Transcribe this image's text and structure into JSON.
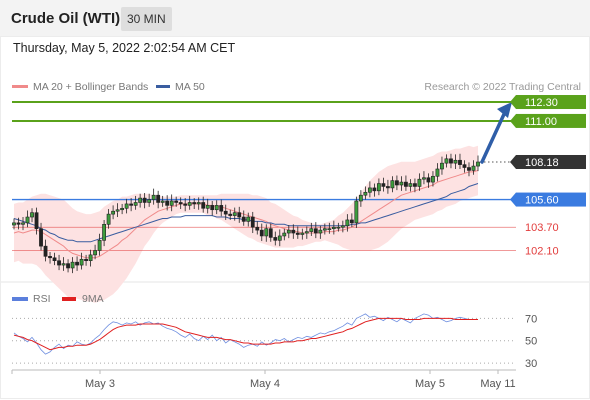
{
  "header": {
    "title": "Crude Oil (WTI)",
    "timeframe": "30 MIN",
    "datetime": "Thursday, May 5, 2022 2:02:54 AM CET"
  },
  "legend": {
    "ma20": "MA 20 + Bollinger Bands",
    "ma50": "MA 50",
    "credit": "Research © 2022 Trading Central",
    "rsi": "RSI",
    "ma9": "9MA"
  },
  "colors": {
    "ma20": "#f08a8a",
    "ma50": "#3a5da0",
    "target": "#5aa21b",
    "pivot": "#3a7be0",
    "support": "#e23c3c",
    "current": "#333333",
    "band": "#fde2e2",
    "arrow": "#2f5ea8"
  },
  "chart_data": [
    {
      "type": "candlestick",
      "x_ticks": [
        "May 3",
        "May 4",
        "May 5",
        "May 11"
      ],
      "ylim": [
        99.8,
        113.4
      ],
      "levels": [
        {
          "value": 112.3,
          "label": "112.30",
          "kind": "target"
        },
        {
          "value": 111.0,
          "label": "111.00",
          "kind": "target"
        },
        {
          "value": 108.18,
          "label": "108.18",
          "kind": "current"
        },
        {
          "value": 105.6,
          "label": "105.60",
          "kind": "pivot"
        },
        {
          "value": 103.7,
          "label": "103.70",
          "kind": "support"
        },
        {
          "value": 102.1,
          "label": "102.10",
          "kind": "support"
        }
      ],
      "closes": [
        104.0,
        103.9,
        104.0,
        104.4,
        104.7,
        103.6,
        102.4,
        101.7,
        101.6,
        101.4,
        101.1,
        101.2,
        100.9,
        101.3,
        101.1,
        101.5,
        101.4,
        101.8,
        102.1,
        102.8,
        103.9,
        104.6,
        104.8,
        104.9,
        105.0,
        105.3,
        105.2,
        105.4,
        105.7,
        105.4,
        105.6,
        105.9,
        105.4,
        105.5,
        105.2,
        105.5,
        105.4,
        105.3,
        105.2,
        105.4,
        105.3,
        105.4,
        105.0,
        105.2,
        104.9,
        105.2,
        104.8,
        104.6,
        104.5,
        104.7,
        104.4,
        104.1,
        104.4,
        103.7,
        103.5,
        103.1,
        103.6,
        103.0,
        102.8,
        103.1,
        103.3,
        103.5,
        103.3,
        103.2,
        103.3,
        103.4,
        103.6,
        103.3,
        103.5,
        103.6,
        103.6,
        103.7,
        103.7,
        103.8,
        104.2,
        104.0,
        105.5,
        105.9,
        106.1,
        106.4,
        106.2,
        106.7,
        106.5,
        106.4,
        106.9,
        106.6,
        106.8,
        106.5,
        106.7,
        106.5,
        107.0,
        107.1,
        106.8,
        107.2,
        107.7,
        108.1,
        108.4,
        108.1,
        108.3,
        108.0,
        107.8,
        107.6,
        107.9,
        108.18
      ],
      "ma20": [
        103.3,
        103.4,
        103.3,
        103.4,
        103.5,
        103.5,
        103.4,
        103.2,
        103.0,
        102.8,
        102.6,
        102.4,
        102.1,
        101.9,
        101.8,
        101.7,
        101.6,
        101.6,
        101.6,
        101.7,
        101.9,
        102.1,
        102.3,
        102.5,
        102.8,
        103.0,
        103.3,
        103.6,
        103.9,
        104.2,
        104.4,
        104.6,
        104.8,
        104.9,
        105.0,
        105.1,
        105.2,
        105.3,
        105.3,
        105.3,
        105.3,
        105.3,
        105.3,
        105.2,
        105.2,
        105.1,
        105.1,
        105.0,
        104.9,
        104.8,
        104.7,
        104.6,
        104.5,
        104.4,
        104.3,
        104.2,
        104.1,
        103.9,
        103.8,
        103.7,
        103.6,
        103.5,
        103.4,
        103.4,
        103.3,
        103.3,
        103.3,
        103.3,
        103.3,
        103.4,
        103.4,
        103.4,
        103.5,
        103.5,
        103.6,
        103.7,
        103.9,
        104.1,
        104.3,
        104.5,
        104.7,
        104.9,
        105.1,
        105.3,
        105.5,
        105.7,
        105.9,
        106.0,
        106.1,
        106.2,
        106.3,
        106.4,
        106.5,
        106.6,
        106.8,
        106.9,
        107.0,
        107.1,
        107.2,
        107.3,
        107.4,
        107.5,
        107.5,
        107.6
      ],
      "ma50": [
        104.3,
        104.2,
        104.1,
        104.0,
        103.9,
        103.8,
        103.6,
        103.5,
        103.3,
        103.2,
        103.0,
        102.9,
        102.8,
        102.8,
        102.7,
        102.7,
        102.7,
        102.7,
        102.8,
        102.9,
        103.0,
        103.1,
        103.2,
        103.3,
        103.4,
        103.5,
        103.6,
        103.7,
        103.8,
        103.9,
        104.0,
        104.1,
        104.2,
        104.3,
        104.3,
        104.4,
        104.4,
        104.4,
        104.5,
        104.5,
        104.5,
        104.5,
        104.5,
        104.5,
        104.5,
        104.4,
        104.4,
        104.4,
        104.3,
        104.3,
        104.3,
        104.2,
        104.2,
        104.1,
        104.1,
        104.1,
        104.0,
        104.0,
        103.9,
        103.9,
        103.9,
        103.8,
        103.8,
        103.8,
        103.8,
        103.8,
        103.8,
        103.8,
        103.8,
        103.8,
        103.8,
        103.8,
        103.8,
        103.8,
        103.8,
        103.9,
        103.9,
        104.0,
        104.0,
        104.1,
        104.2,
        104.3,
        104.4,
        104.5,
        104.6,
        104.7,
        104.8,
        104.9,
        105.0,
        105.1,
        105.2,
        105.3,
        105.4,
        105.5,
        105.6,
        105.7,
        105.8,
        106.0,
        106.1,
        106.2,
        106.3,
        106.5,
        106.6,
        106.7
      ],
      "band_width": [
        2.0,
        2.0,
        2.1,
        2.2,
        2.3,
        2.4,
        2.6,
        2.8,
        2.9,
        3.0,
        3.1,
        3.2,
        3.2,
        3.1,
        3.0,
        3.0,
        3.0,
        3.0,
        3.1,
        3.1,
        3.2,
        3.2,
        3.2,
        3.1,
        3.0,
        2.8,
        2.6,
        2.4,
        2.1,
        1.8,
        1.6,
        1.3,
        1.1,
        0.9,
        0.8,
        0.7,
        0.6,
        0.6,
        0.6,
        0.6,
        0.6,
        0.6,
        0.6,
        0.7,
        0.7,
        0.8,
        0.9,
        1.0,
        1.1,
        1.2,
        1.3,
        1.4,
        1.5,
        1.5,
        1.6,
        1.6,
        1.6,
        1.5,
        1.5,
        1.4,
        1.3,
        1.2,
        1.1,
        1.0,
        0.9,
        0.8,
        0.7,
        0.6,
        0.6,
        0.6,
        0.7,
        0.8,
        1.0,
        1.2,
        1.4,
        1.6,
        1.8,
        2.0,
        2.2,
        2.4,
        2.5,
        2.6,
        2.6,
        2.6,
        2.5,
        2.4,
        2.3,
        2.2,
        2.1,
        2.0,
        2.0,
        2.0,
        2.0,
        2.0,
        2.0,
        2.0,
        1.9,
        1.9,
        1.9,
        1.8,
        1.8,
        1.8,
        1.7,
        1.7
      ],
      "forecast_target": 112.3
    },
    {
      "type": "line",
      "ylim": [
        22,
        82
      ],
      "y_ticks": [
        70,
        50,
        30
      ],
      "series": [
        {
          "name": "RSI",
          "values": [
            57,
            54,
            52,
            49,
            53,
            48,
            42,
            38,
            40,
            44,
            47,
            43,
            46,
            45,
            49,
            47,
            46,
            48,
            52,
            55,
            60,
            64,
            67,
            66,
            64,
            66,
            65,
            67,
            64,
            66,
            67,
            65,
            66,
            63,
            61,
            60,
            58,
            55,
            53,
            56,
            52,
            50,
            54,
            51,
            55,
            50,
            53,
            48,
            51,
            49,
            47,
            44,
            46,
            47,
            45,
            49,
            46,
            48,
            51,
            50,
            52,
            49,
            51,
            53,
            52,
            54,
            53,
            55,
            57,
            56,
            58,
            59,
            61,
            63,
            66,
            64,
            70,
            72,
            74,
            71,
            72,
            70,
            68,
            71,
            69,
            67,
            70,
            68,
            66,
            70,
            72,
            74,
            73,
            70,
            71,
            69,
            67,
            68,
            70,
            71,
            70,
            69,
            69,
            69
          ]
        },
        {
          "name": "9MA",
          "values": [
            55,
            54,
            53,
            51,
            50,
            48,
            46,
            44,
            42,
            43,
            44,
            44,
            45,
            45,
            46,
            46,
            46,
            47,
            49,
            51,
            54,
            57,
            60,
            62,
            63,
            64,
            64,
            64,
            65,
            65,
            65,
            65,
            65,
            65,
            64,
            63,
            62,
            60,
            58,
            57,
            56,
            55,
            54,
            53,
            53,
            53,
            52,
            51,
            51,
            50,
            49,
            48,
            48,
            47,
            47,
            47,
            47,
            47,
            48,
            48,
            49,
            49,
            49,
            50,
            50,
            51,
            52,
            52,
            53,
            54,
            55,
            56,
            57,
            58,
            60,
            61,
            63,
            65,
            67,
            68,
            69,
            70,
            70,
            70,
            70,
            70,
            70,
            69,
            69,
            69,
            69,
            70,
            70,
            70,
            70,
            70,
            70,
            70,
            69,
            69,
            69,
            69,
            69,
            69
          ]
        }
      ]
    }
  ]
}
